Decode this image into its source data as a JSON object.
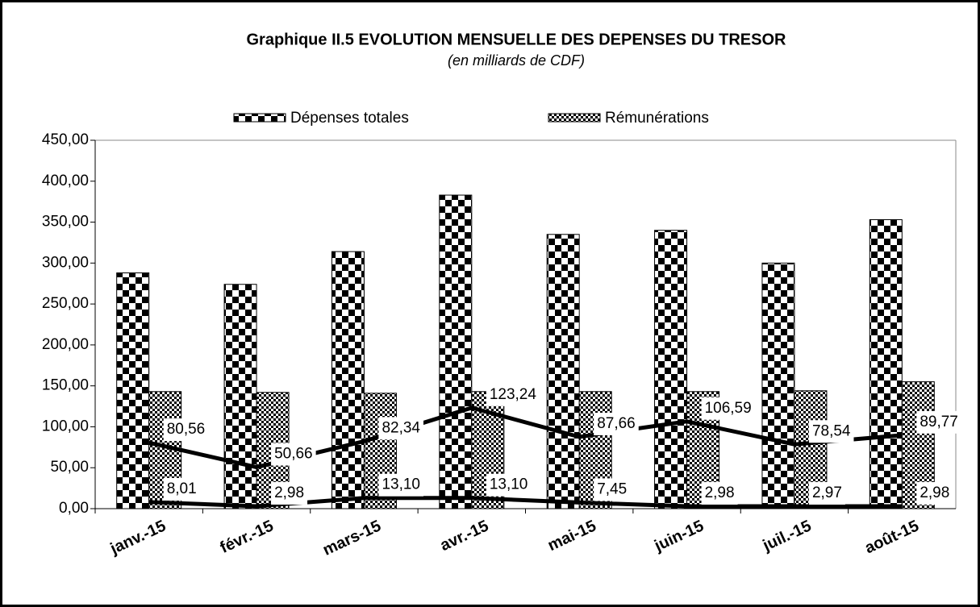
{
  "chart_data": {
    "type": "bar",
    "title": "Graphique II.5  EVOLUTION MENSUELLE DES DEPENSES DU TRESOR",
    "subtitle": "(en milliards de CDF)",
    "categories": [
      "janv.-15",
      "févr.-15",
      "mars-15",
      "avr.-15",
      "mai-15",
      "juin-15",
      "juil.-15",
      "août-15"
    ],
    "series": [
      {
        "name": "Dépenses totales",
        "color": "#000000",
        "type": "bar",
        "values": [
          288,
          274,
          314,
          383,
          335,
          340,
          300,
          353
        ]
      },
      {
        "name": "Rémunérations",
        "color": "#000000",
        "type": "bar",
        "values": [
          143,
          142,
          141,
          143,
          143,
          143,
          144,
          155
        ]
      },
      {
        "color": "#000000",
        "type": "line",
        "values": [
          80.56,
          50.66,
          82.34,
          123.24,
          87.66,
          106.59,
          78.54,
          89.77
        ],
        "value_labels": [
          "80,56",
          "50,66",
          "82,34",
          "123,24",
          "87,66",
          "106,59",
          "78,54",
          "89,77"
        ]
      },
      {
        "color": "#000000",
        "type": "line",
        "values": [
          8.01,
          2.98,
          13.1,
          13.1,
          7.45,
          2.98,
          2.97,
          2.98
        ],
        "value_labels": [
          "8,01",
          "2,98",
          "13,10",
          "13,10",
          "7,45",
          "2,98",
          "2,97",
          "2,98"
        ]
      }
    ],
    "ylim": [
      0,
      450
    ],
    "yticks": [
      {
        "value": 0,
        "label": "0,00"
      },
      {
        "value": 50,
        "label": "50,00"
      },
      {
        "value": 100,
        "label": "100,00"
      },
      {
        "value": 150,
        "label": "150,00"
      },
      {
        "value": 200,
        "label": "200,00"
      },
      {
        "value": 250,
        "label": "250,00"
      },
      {
        "value": 300,
        "label": "300,00"
      },
      {
        "value": 350,
        "label": "350,00"
      },
      {
        "value": 400,
        "label": "400,00"
      },
      {
        "value": 450,
        "label": "450,00"
      }
    ],
    "legend": "top"
  }
}
